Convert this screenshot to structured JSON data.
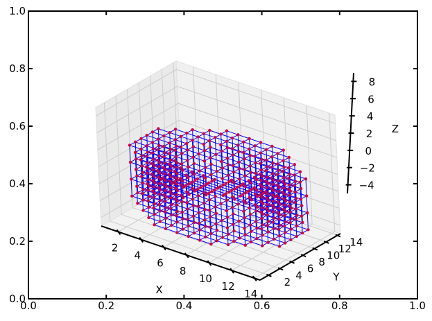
{
  "chart_data": {
    "type": "scatter",
    "projection": "3d",
    "title": "",
    "outer_axes": {
      "x_ticks": [
        "0.0",
        "0.2",
        "0.4",
        "0.6",
        "0.8",
        "1.0"
      ],
      "y_ticks": [
        "0.0",
        "0.2",
        "0.4",
        "0.6",
        "0.8",
        "1.0"
      ],
      "xlim": [
        0,
        1
      ],
      "ylim": [
        0,
        1
      ]
    },
    "axes3d": {
      "xlabel": "X",
      "ylabel": "Y",
      "zlabel": "Z",
      "x_ticks": [
        "2",
        "4",
        "6",
        "8",
        "10",
        "12",
        "14"
      ],
      "y_ticks": [
        "2",
        "4",
        "6",
        "8",
        "10",
        "12",
        "14"
      ],
      "z_ticks": [
        "−4",
        "−2",
        "0",
        "2",
        "4",
        "6",
        "8"
      ],
      "xlim": [
        0.5,
        14.5
      ],
      "ylim": [
        0.5,
        14.5
      ],
      "zlim": [
        -5,
        9
      ],
      "grid": true
    },
    "structure": {
      "description": "annular lattice of points connected by wireframe edges",
      "x_range": [
        1,
        14
      ],
      "y_range": [
        1,
        14
      ],
      "z_levels": [
        -3,
        -1,
        1,
        3
      ],
      "inner_radius": 3,
      "outer_radius": 7,
      "center": [
        7.5,
        7.5
      ],
      "grid_step": 1
    },
    "colors": {
      "points": "#d4003a",
      "edges": "#0000ff",
      "pane": "#f2f2f2",
      "grid": "#cccccc"
    }
  }
}
